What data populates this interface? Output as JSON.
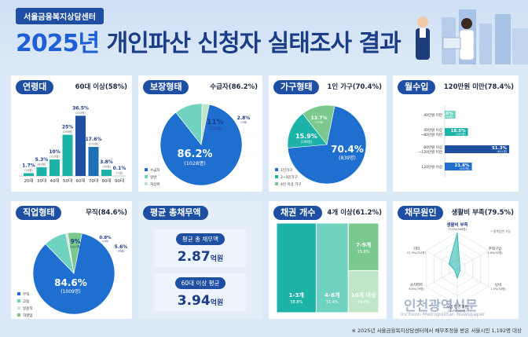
{
  "header": {
    "center": "서울금융복지상담센터",
    "year": "2025년",
    "title": "개인파산 신청자 실태조사 결과"
  },
  "colors": {
    "navy": "#1e4fa3",
    "blue": "#1f6fd1",
    "teal": "#1eb3a8",
    "lightteal": "#6fd3c0",
    "green": "#7bc98e",
    "pale": "#bfe6c9",
    "bg": "#dbe8f6"
  },
  "chart_data": [
    {
      "id": "age",
      "type": "bar",
      "title": "연령대",
      "note": "60대 이상(58%)",
      "categories": [
        "20대",
        "30대",
        "40대",
        "50대",
        "60대",
        "70대",
        "80대",
        "90대"
      ],
      "values": [
        1.7,
        5.3,
        10,
        25,
        36.5,
        17.6,
        3.8,
        0.1
      ],
      "value_labels": [
        "1.7%",
        "5.3%",
        "10%",
        "25%",
        "36.5%",
        "17.6%",
        "3.8%",
        "0.1%"
      ],
      "count_labels": [
        "(20명)",
        "(63명)",
        "(119명)",
        "(298명)",
        "(435명)",
        "(210명)",
        "(45명)",
        "(1명)"
      ]
    },
    {
      "id": "guarantee",
      "type": "pie",
      "title": "보장형태",
      "note": "수급자(86.2%)",
      "slices": [
        {
          "name": "수급자",
          "value": 86.2,
          "label": "86.2%",
          "count": "(1028명)"
        },
        {
          "name": "일반",
          "value": 11,
          "label": "11%",
          "count": "(131명)"
        },
        {
          "name": "차상위",
          "value": 2.8,
          "label": "2.8%",
          "count": "(33명)"
        }
      ]
    },
    {
      "id": "household",
      "type": "pie",
      "title": "가구형태",
      "note": "1인 가구(70.4%)",
      "slices": [
        {
          "name": "1인가구",
          "value": 70.4,
          "label": "70.4%",
          "count": "(839명)"
        },
        {
          "name": "2~3인가구",
          "value": 15.9,
          "label": "15.9%",
          "count": "(190명)"
        },
        {
          "name": "4인 이상 가구",
          "value": 13.7,
          "label": "13.7%",
          "count": "(163명)"
        }
      ]
    },
    {
      "id": "income",
      "type": "bar",
      "title": "월수입",
      "note": "120만원 미만(78.4%)",
      "categories": [
        "40만원 미만",
        "40만원 이상 ~80만원 미만",
        "80만원 이상 ~120만원 미만",
        "120만원 이상"
      ],
      "values": [
        8.6,
        18.5,
        51.3,
        21.6
      ],
      "value_labels": [
        "8.6%",
        "18.5%",
        "51.3%",
        "21.6%"
      ],
      "count_labels": [
        "(103명)",
        "(221명)",
        "(611명)",
        "(257명)"
      ]
    },
    {
      "id": "job",
      "type": "pie",
      "title": "직업형태",
      "note": "무직(84.6%)",
      "slices": [
        {
          "name": "무직",
          "value": 84.6,
          "label": "84.6%",
          "count": "(1009명)"
        },
        {
          "name": "고용",
          "value": 9,
          "label": "9%",
          "count": "(107명)"
        },
        {
          "name": "일용직",
          "value": 0.8,
          "label": "0.8%",
          "count": "(10명)"
        },
        {
          "name": "자영업",
          "value": 5.6,
          "label": "5.6%",
          "count": "(66명)"
        }
      ]
    },
    {
      "id": "debt_amount",
      "type": "table",
      "title": "평균 총채무액",
      "rows": [
        {
          "label": "평균 총 채무액",
          "value": "2.87",
          "unit": "억원"
        },
        {
          "label": "60대 이상 평균",
          "value": "3.94",
          "unit": "억원"
        }
      ]
    },
    {
      "id": "creditors",
      "type": "bar",
      "title": "채권 개수",
      "note": "4개 이상(61.2%)",
      "categories": [
        "1-3개",
        "4-6개",
        "7-9개",
        "10개 이상"
      ],
      "values": [
        38.8,
        31.4,
        15.8,
        14.0
      ],
      "value_labels": [
        "38.8%",
        "31.4%",
        "15.8%",
        "14.0%"
      ]
    },
    {
      "id": "cause",
      "type": "radar",
      "title": "채무원인",
      "note": "생활비 부족(79.5%)",
      "categories": [
        "생활비 부족",
        "주택구입",
        "낭비",
        "사업 경영 파탄",
        "사치파트",
        "기타"
      ],
      "values": [
        79.5,
        4.6,
        1.5,
        21.0,
        6.6,
        21.3
      ],
      "value_labels": [
        "79.5%(948명)",
        "4.6%(55명)",
        "1.5%(18명)",
        "21.0%(251명)",
        "6.6%(79명)",
        "21.3%(254명)"
      ],
      "note2": "* 중복답변 가능"
    }
  ],
  "footnote": "※ 2025년 서울금융복지상담센터에서 채무조정을 받은 서울시민 1,192명 대상",
  "watermark": "인천광역신문",
  "watermark_sub": "Incheon Metropolitan Newspaper"
}
